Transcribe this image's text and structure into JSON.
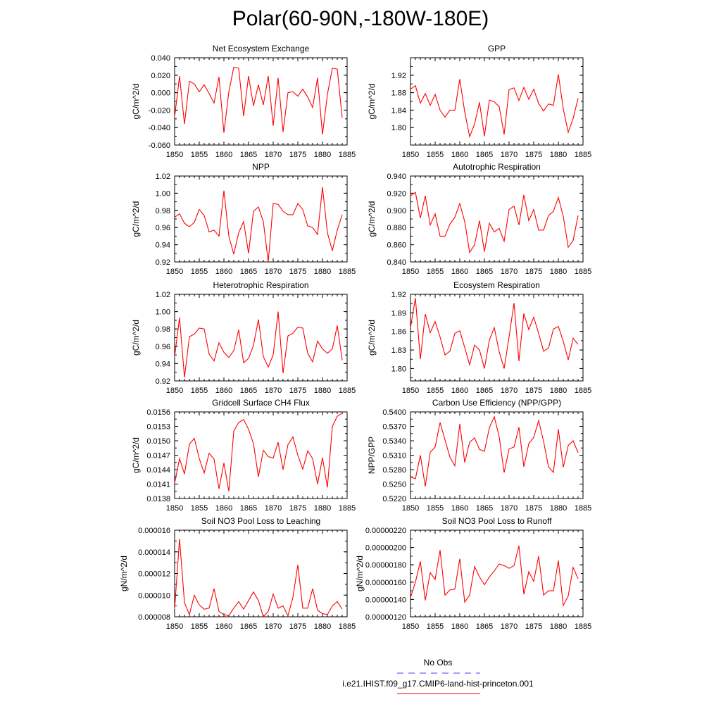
{
  "figure": {
    "title": "Polar(60-90N,-180W-180E)",
    "line_color": "#ff0000",
    "obs_color": "#4040ff"
  },
  "legend": {
    "entries": [
      {
        "label": "No Obs",
        "style": "dashed",
        "color": "#4040ff"
      },
      {
        "label": "i.e21.IHIST.f09_g17.CMIP6-land-hist-princeton.001",
        "style": "solid",
        "color": "#ff0000"
      }
    ]
  },
  "chart_data": [
    {
      "type": "line",
      "title": "Net Ecosystem Exchange",
      "ylabel": "gC/m^2/d",
      "xlim": [
        1850,
        1885
      ],
      "ylim": [
        -0.06,
        0.04
      ],
      "xticks": [
        "1850",
        "1855",
        "1860",
        "1865",
        "1870",
        "1875",
        "1880",
        "1885"
      ],
      "yticks": [
        "-0.060",
        "-0.040",
        "-0.020",
        "0.000",
        "0.020",
        "0.040"
      ],
      "x_start": 1850,
      "values": [
        -0.028,
        0.019,
        -0.036,
        0.013,
        0.01,
        0.001,
        0.009,
        -0.001,
        -0.012,
        0.018,
        -0.046,
        0.001,
        0.029,
        0.028,
        -0.027,
        0.019,
        -0.015,
        0.009,
        -0.014,
        0.019,
        -0.038,
        0.017,
        -0.045,
        0.0,
        0.001,
        -0.004,
        0.004,
        -0.005,
        -0.017,
        0.017,
        -0.048,
        -0.002,
        0.028,
        0.027,
        -0.029
      ]
    },
    {
      "type": "line",
      "title": "GPP",
      "ylabel": "gC/m^2/d",
      "xlim": [
        1850,
        1885
      ],
      "ylim": [
        1.76,
        1.96
      ],
      "xticks": [
        "1850",
        "1855",
        "1860",
        "1865",
        "1870",
        "1875",
        "1880",
        "1885"
      ],
      "yticks": [
        "1.80",
        "1.84",
        "1.88",
        "1.92"
      ],
      "x_start": 1850,
      "values": [
        1.888,
        1.896,
        1.856,
        1.878,
        1.851,
        1.876,
        1.84,
        1.824,
        1.84,
        1.84,
        1.911,
        1.836,
        1.779,
        1.808,
        1.858,
        1.78,
        1.863,
        1.859,
        1.848,
        1.784,
        1.887,
        1.891,
        1.862,
        1.892,
        1.865,
        1.888,
        1.855,
        1.838,
        1.854,
        1.851,
        1.922,
        1.843,
        1.789,
        1.821,
        1.867
      ]
    },
    {
      "type": "line",
      "title": "NPP",
      "ylabel": "gC/m^2/d",
      "xlim": [
        1850,
        1885
      ],
      "ylim": [
        0.92,
        1.02
      ],
      "xticks": [
        "1850",
        "1855",
        "1860",
        "1865",
        "1870",
        "1875",
        "1880",
        "1885"
      ],
      "yticks": [
        "0.92",
        "0.94",
        "0.96",
        "0.98",
        "1.00",
        "1.02"
      ],
      "x_start": 1850,
      "values": [
        0.972,
        0.976,
        0.965,
        0.961,
        0.966,
        0.981,
        0.974,
        0.955,
        0.957,
        0.95,
        1.003,
        0.95,
        0.929,
        0.954,
        0.967,
        0.93,
        0.979,
        0.984,
        0.967,
        0.92,
        0.988,
        0.987,
        0.979,
        0.975,
        0.975,
        0.988,
        0.981,
        0.962,
        0.96,
        0.952,
        1.007,
        0.954,
        0.933,
        0.957,
        0.975
      ]
    },
    {
      "type": "line",
      "title": "Autotrophic Respiration",
      "ylabel": "gC/m^2/d",
      "xlim": [
        1850,
        1885
      ],
      "ylim": [
        0.84,
        0.94
      ],
      "xticks": [
        "1850",
        "1855",
        "1860",
        "1865",
        "1870",
        "1875",
        "1880",
        "1885"
      ],
      "yticks": [
        "0.840",
        "0.860",
        "0.880",
        "0.900",
        "0.920",
        "0.940"
      ],
      "x_start": 1850,
      "values": [
        0.917,
        0.921,
        0.891,
        0.917,
        0.883,
        0.896,
        0.87,
        0.87,
        0.884,
        0.892,
        0.908,
        0.887,
        0.851,
        0.86,
        0.888,
        0.852,
        0.885,
        0.875,
        0.879,
        0.864,
        0.901,
        0.905,
        0.883,
        0.918,
        0.888,
        0.901,
        0.877,
        0.877,
        0.894,
        0.899,
        0.915,
        0.893,
        0.857,
        0.865,
        0.894
      ]
    },
    {
      "type": "line",
      "title": "Heterotrophic Respiration",
      "ylabel": "gC/m^2/d",
      "xlim": [
        1850,
        1885
      ],
      "ylim": [
        0.92,
        1.02
      ],
      "xticks": [
        "1850",
        "1855",
        "1860",
        "1865",
        "1870",
        "1875",
        "1880",
        "1885"
      ],
      "yticks": [
        "0.92",
        "0.94",
        "0.96",
        "0.98",
        "1.00",
        "1.02"
      ],
      "x_start": 1850,
      "values": [
        0.948,
        0.993,
        0.924,
        0.971,
        0.974,
        0.981,
        0.98,
        0.951,
        0.943,
        0.964,
        0.953,
        0.947,
        0.955,
        0.979,
        0.941,
        0.946,
        0.961,
        0.991,
        0.948,
        0.936,
        0.95,
        1.0,
        0.929,
        0.972,
        0.975,
        0.982,
        0.981,
        0.952,
        0.942,
        0.966,
        0.957,
        0.952,
        0.957,
        0.984,
        0.944
      ]
    },
    {
      "type": "line",
      "title": "Ecosystem Respiration",
      "ylabel": "gC/m^2/d",
      "xlim": [
        1850,
        1885
      ],
      "ylim": [
        1.78,
        1.92
      ],
      "xticks": [
        "1850",
        "1855",
        "1860",
        "1865",
        "1870",
        "1875",
        "1880",
        "1885"
      ],
      "yticks": [
        "1.80",
        "1.83",
        "1.86",
        "1.89",
        "1.92"
      ],
      "x_start": 1850,
      "values": [
        1.866,
        1.914,
        1.815,
        1.888,
        1.858,
        1.876,
        1.851,
        1.822,
        1.828,
        1.857,
        1.861,
        1.834,
        1.806,
        1.838,
        1.83,
        1.8,
        1.846,
        1.866,
        1.827,
        1.8,
        1.851,
        1.906,
        1.812,
        1.889,
        1.863,
        1.883,
        1.857,
        1.828,
        1.833,
        1.864,
        1.868,
        1.844,
        1.814,
        1.849,
        1.839
      ]
    },
    {
      "type": "line",
      "title": "Gridcell Surface CH4 Flux",
      "ylabel": "gC/m^2/d",
      "xlim": [
        1850,
        1885
      ],
      "ylim": [
        0.0138,
        0.0156
      ],
      "xticks": [
        "1850",
        "1855",
        "1860",
        "1865",
        "1870",
        "1875",
        "1880",
        "1885"
      ],
      "yticks": [
        "0.0138",
        "0.0141",
        "0.0144",
        "0.0147",
        "0.0150",
        "0.0153",
        "0.0156"
      ],
      "x_start": 1850,
      "values": [
        0.01412,
        0.01463,
        0.01431,
        0.01493,
        0.01505,
        0.01463,
        0.01433,
        0.01474,
        0.01462,
        0.014,
        0.01454,
        0.01395,
        0.0152,
        0.01538,
        0.01544,
        0.01524,
        0.01494,
        0.01425,
        0.0148,
        0.01467,
        0.01464,
        0.01497,
        0.0144,
        0.01492,
        0.01508,
        0.0147,
        0.01441,
        0.01479,
        0.01463,
        0.0141,
        0.01465,
        0.01403,
        0.0153,
        0.01551,
        0.01557
      ]
    },
    {
      "type": "line",
      "title": "Carbon Use Efficiency (NPP/GPP)",
      "ylabel": "NPP/GPP",
      "xlim": [
        1850,
        1885
      ],
      "ylim": [
        0.522,
        0.54
      ],
      "xticks": [
        "1850",
        "1855",
        "1860",
        "1865",
        "1870",
        "1875",
        "1880",
        "1885"
      ],
      "yticks": [
        "0.5220",
        "0.5250",
        "0.5280",
        "0.5310",
        "0.5340",
        "0.5370",
        "0.5400"
      ],
      "x_start": 1850,
      "values": [
        0.5265,
        0.5261,
        0.531,
        0.5245,
        0.5316,
        0.5327,
        0.5378,
        0.5342,
        0.5306,
        0.5288,
        0.5375,
        0.5295,
        0.5337,
        0.5346,
        0.5322,
        0.5318,
        0.5367,
        0.539,
        0.5348,
        0.5274,
        0.5323,
        0.5327,
        0.5368,
        0.5286,
        0.5334,
        0.5347,
        0.5382,
        0.5339,
        0.5286,
        0.5274,
        0.5364,
        0.5285,
        0.533,
        0.534,
        0.5315
      ]
    },
    {
      "type": "line",
      "title": "Soil NO3 Pool Loss to Leaching",
      "ylabel": "gN/m^2/d",
      "xlim": [
        1850,
        1885
      ],
      "ylim": [
        8e-06,
        1.6e-05
      ],
      "xticks": [
        "1850",
        "1855",
        "1860",
        "1865",
        "1870",
        "1875",
        "1880",
        "1885"
      ],
      "yticks": [
        "0.000008",
        "0.000010",
        "0.000012",
        "0.000014",
        "0.000016"
      ],
      "x_start": 1850,
      "values": [
        8.7e-06,
        1.52e-05,
        9.3e-06,
        8.2e-06,
        1e-05,
        9.1e-06,
        8.7e-06,
        8.8e-06,
        1.06e-05,
        8.5e-06,
        8.2e-06,
        8.1e-06,
        8.8e-06,
        9.4e-06,
        8.7e-06,
        9.5e-06,
        1.03e-05,
        9.5e-06,
        8e-06,
        8.5e-06,
        1.01e-05,
        8.8e-06,
        9e-06,
        8.1e-06,
        9.8e-06,
        1.28e-05,
        8.8e-06,
        8.8e-06,
        1.06e-05,
        8.6e-06,
        8.3e-06,
        8.2e-06,
        9e-06,
        9.4e-06,
        8.7e-06
      ]
    },
    {
      "type": "line",
      "title": "Soil NO3 Pool Loss to Runoff",
      "ylabel": "gN/m^2/d",
      "xlim": [
        1850,
        1885
      ],
      "ylim": [
        1.2e-06,
        2.2e-06
      ],
      "xticks": [
        "1850",
        "1855",
        "1860",
        "1865",
        "1870",
        "1875",
        "1880",
        "1885"
      ],
      "yticks": [
        "0.00000120",
        "0.00000140",
        "0.00000160",
        "0.00000180",
        "0.00000200",
        "0.00000220"
      ],
      "x_start": 1850,
      "values": [
        1.42e-06,
        1.6e-06,
        1.84e-06,
        1.39e-06,
        1.71e-06,
        1.63e-06,
        1.97e-06,
        1.45e-06,
        1.51e-06,
        1.52e-06,
        1.87e-06,
        1.37e-06,
        1.45e-06,
        1.78e-06,
        1.66e-06,
        1.57e-06,
        1.66e-06,
        1.73e-06,
        1.81e-06,
        1.79e-06,
        1.76e-06,
        1.79e-06,
        2.02e-06,
        1.46e-06,
        1.72e-06,
        1.61e-06,
        1.9e-06,
        1.45e-06,
        1.5e-06,
        1.5e-06,
        1.85e-06,
        1.33e-06,
        1.44e-06,
        1.77e-06,
        1.64e-06
      ]
    }
  ]
}
